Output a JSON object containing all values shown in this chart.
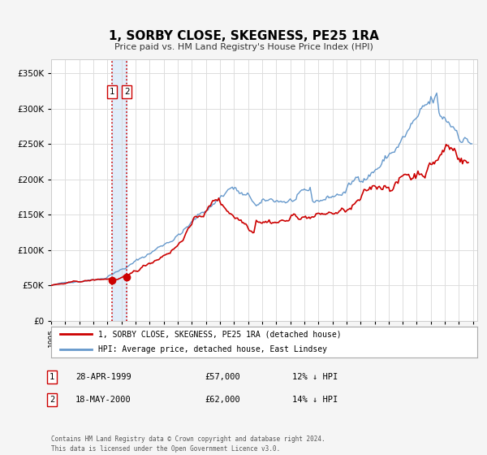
{
  "title": "1, SORBY CLOSE, SKEGNESS, PE25 1RA",
  "subtitle": "Price paid vs. HM Land Registry's House Price Index (HPI)",
  "legend_label_1": "1, SORBY CLOSE, SKEGNESS, PE25 1RA (detached house)",
  "legend_label_2": "HPI: Average price, detached house, East Lindsey",
  "transaction_label_1": "1",
  "transaction_date_1": "28-APR-1999",
  "transaction_price_1": "£57,000",
  "transaction_hpi_1": "12% ↓ HPI",
  "transaction_label_2": "2",
  "transaction_date_2": "18-MAY-2000",
  "transaction_price_2": "£62,000",
  "transaction_hpi_2": "14% ↓ HPI",
  "footer": "Contains HM Land Registry data © Crown copyright and database right 2024.\nThis data is licensed under the Open Government Licence v3.0.",
  "price_color": "#cc0000",
  "hpi_color": "#6699cc",
  "background_color": "#f5f5f5",
  "plot_bg_color": "#ffffff",
  "ylim": [
    0,
    370000
  ],
  "xlim_start": 1995.0,
  "xlim_end": 2025.3,
  "marker1_x": 1999.32,
  "marker1_y": 57000,
  "marker2_x": 2000.38,
  "marker2_y": 62000,
  "vline1_x": 1999.32,
  "vline2_x": 2000.38,
  "shade_x1": 1999.32,
  "shade_x2": 2000.38
}
